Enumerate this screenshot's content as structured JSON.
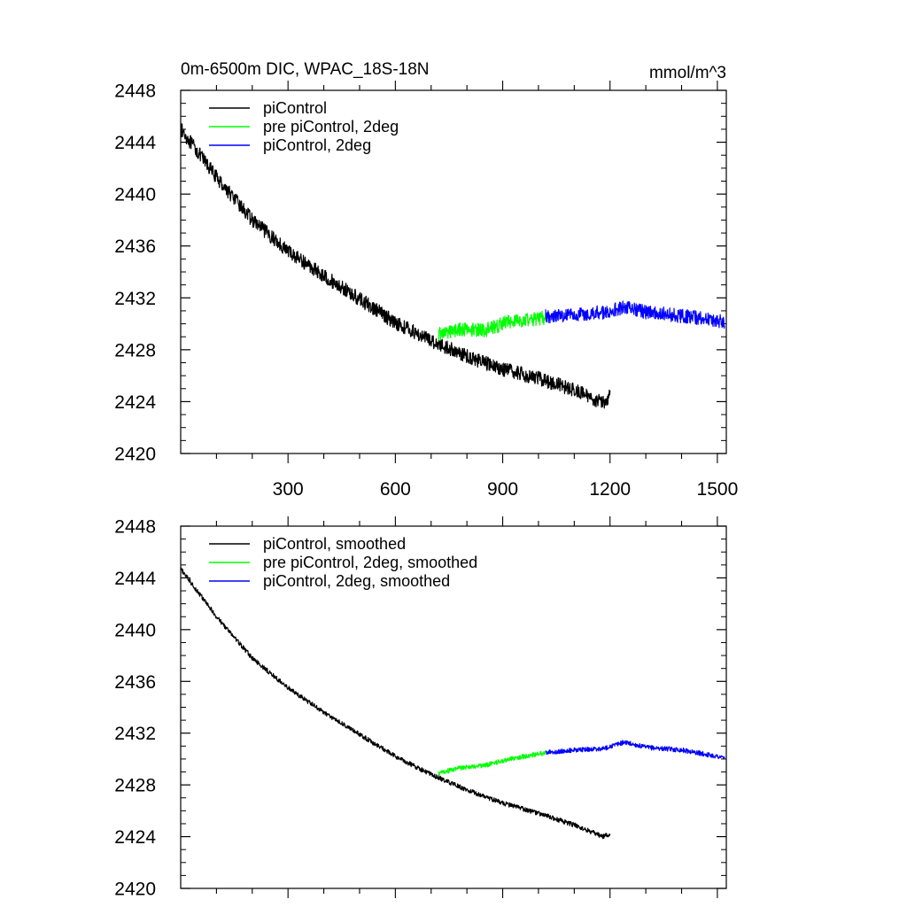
{
  "chart_data": [
    {
      "type": "line",
      "title": "0m-6500m DIC, WPAC_18S-18N",
      "units": "mmol/m^3",
      "xlim": [
        0,
        1525
      ],
      "ylim": [
        2420,
        2448
      ],
      "xticks": [
        300,
        600,
        900,
        1200,
        1500
      ],
      "yticks": [
        2420,
        2424,
        2428,
        2432,
        2436,
        2440,
        2444,
        2448
      ],
      "xtick_labels": [
        "300",
        "600",
        "900",
        "1200",
        "1500"
      ],
      "ytick_labels": [
        "2420",
        "2424",
        "2428",
        "2432",
        "2436",
        "2440",
        "2444",
        "2448"
      ],
      "legend_location": "top-left",
      "series": [
        {
          "name": "piControl",
          "color": "#000000",
          "noise": 0.55,
          "points": [
            [
              0,
              2445.0
            ],
            [
              100,
              2441.3
            ],
            [
              200,
              2438.0
            ],
            [
              300,
              2435.6
            ],
            [
              400,
              2433.7
            ],
            [
              500,
              2431.9
            ],
            [
              600,
              2430.1
            ],
            [
              700,
              2428.7
            ],
            [
              800,
              2427.5
            ],
            [
              900,
              2426.5
            ],
            [
              1000,
              2425.8
            ],
            [
              1100,
              2424.9
            ],
            [
              1180,
              2423.9
            ],
            [
              1200,
              2424.5
            ]
          ]
        },
        {
          "name": "pre piControl, 2deg",
          "color": "#00ff00",
          "noise": 0.55,
          "points": [
            [
              720,
              2429.2
            ],
            [
              780,
              2429.6
            ],
            [
              850,
              2429.5
            ],
            [
              920,
              2430.2
            ],
            [
              1000,
              2430.4
            ],
            [
              1020,
              2430.5
            ]
          ]
        },
        {
          "name": "piControl, 2deg",
          "color": "#0000ff",
          "noise": 0.55,
          "points": [
            [
              1020,
              2430.6
            ],
            [
              1100,
              2430.7
            ],
            [
              1180,
              2430.9
            ],
            [
              1240,
              2431.3
            ],
            [
              1300,
              2430.9
            ],
            [
              1400,
              2430.6
            ],
            [
              1520,
              2430.2
            ]
          ]
        }
      ]
    },
    {
      "type": "line",
      "title": "",
      "units": "",
      "xlim": [
        0,
        1525
      ],
      "ylim": [
        2420,
        2448
      ],
      "xticks": [
        300,
        600,
        900,
        1200,
        1500
      ],
      "yticks": [
        2420,
        2424,
        2428,
        2432,
        2436,
        2440,
        2444,
        2448
      ],
      "xtick_labels": [],
      "ytick_labels": [
        "2420",
        "2424",
        "2428",
        "2432",
        "2436",
        "2440",
        "2444",
        "2448"
      ],
      "legend_location": "top-left",
      "series": [
        {
          "name": "piControl, smoothed",
          "color": "#000000",
          "noise": 0.18,
          "points": [
            [
              0,
              2444.7
            ],
            [
              100,
              2441.0
            ],
            [
              200,
              2437.8
            ],
            [
              300,
              2435.5
            ],
            [
              400,
              2433.6
            ],
            [
              500,
              2431.9
            ],
            [
              600,
              2430.2
            ],
            [
              700,
              2428.8
            ],
            [
              800,
              2427.6
            ],
            [
              900,
              2426.6
            ],
            [
              1000,
              2425.8
            ],
            [
              1100,
              2424.9
            ],
            [
              1180,
              2424.0
            ],
            [
              1200,
              2424.2
            ]
          ]
        },
        {
          "name": "pre piControl, 2deg, smoothed",
          "color": "#00ff00",
          "noise": 0.18,
          "points": [
            [
              720,
              2428.9
            ],
            [
              780,
              2429.3
            ],
            [
              850,
              2429.5
            ],
            [
              920,
              2430.0
            ],
            [
              1000,
              2430.4
            ],
            [
              1020,
              2430.5
            ]
          ]
        },
        {
          "name": "piControl, 2deg, smoothed",
          "color": "#0000ff",
          "noise": 0.18,
          "points": [
            [
              1020,
              2430.5
            ],
            [
              1100,
              2430.7
            ],
            [
              1180,
              2430.8
            ],
            [
              1240,
              2431.3
            ],
            [
              1300,
              2430.9
            ],
            [
              1400,
              2430.7
            ],
            [
              1520,
              2430.1
            ]
          ]
        }
      ]
    }
  ]
}
